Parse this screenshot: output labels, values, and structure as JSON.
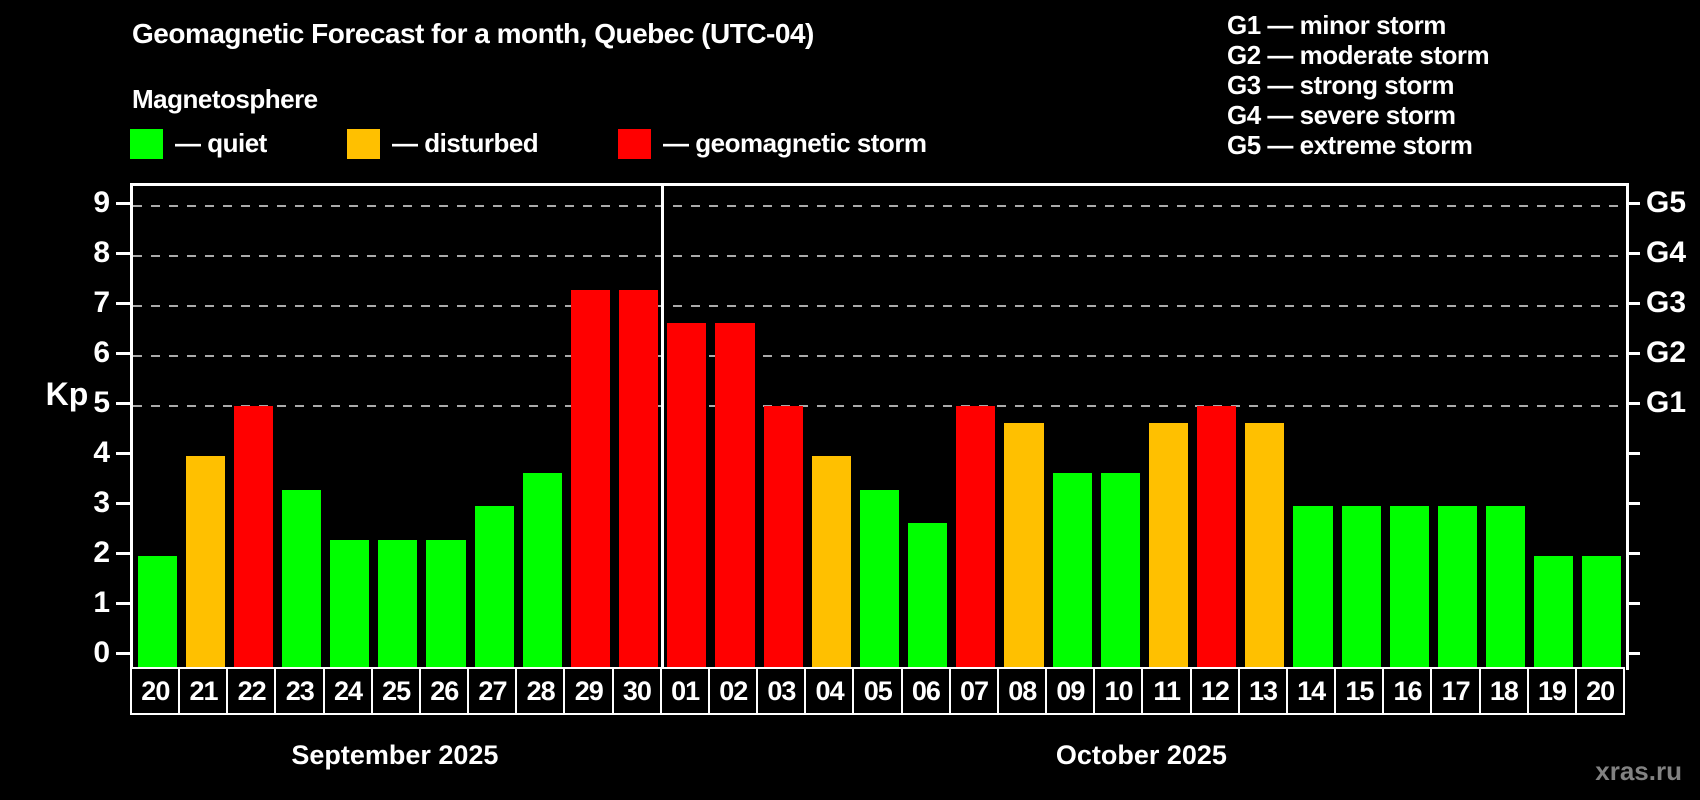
{
  "header": {
    "title": "Geomagnetic Forecast for a month, Quebec (UTC-04)",
    "subtitle": "Magnetosphere"
  },
  "legend": {
    "items": [
      {
        "key": "quiet",
        "label": "— quiet",
        "color": "#00ff00"
      },
      {
        "key": "disturbed",
        "label": "— disturbed",
        "color": "#ffc000"
      },
      {
        "key": "storm",
        "label": "— geomagnetic storm",
        "color": "#ff0000"
      }
    ]
  },
  "g_legend": {
    "items": [
      "G1 — minor storm",
      "G2 — moderate storm",
      "G3 — strong storm",
      "G4 — severe storm",
      "G5 — extreme storm"
    ]
  },
  "axes": {
    "y_label": "Kp",
    "y_ticks": [
      0,
      1,
      2,
      3,
      4,
      5,
      6,
      7,
      8,
      9
    ],
    "gridline_values": [
      5,
      6,
      7,
      8,
      9
    ],
    "right_labels": [
      {
        "text": "G5",
        "kp": 9
      },
      {
        "text": "G4",
        "kp": 8
      },
      {
        "text": "G3",
        "kp": 7
      },
      {
        "text": "G2",
        "kp": 6
      },
      {
        "text": "G1",
        "kp": 5
      }
    ]
  },
  "watermark": "xras.ru",
  "chart_data": {
    "type": "bar",
    "title": "Geomagnetic Forecast for a month, Quebec (UTC-04)",
    "xlabel": "",
    "ylabel": "Kp",
    "ylim": [
      0,
      9.4
    ],
    "grid": "dashed horizontal at Kp 5-9 (G1-G5)",
    "legend_position": "top-left",
    "categories": [
      "20",
      "21",
      "22",
      "23",
      "24",
      "25",
      "26",
      "27",
      "28",
      "29",
      "30",
      "01",
      "02",
      "03",
      "04",
      "05",
      "06",
      "07",
      "08",
      "09",
      "10",
      "11",
      "12",
      "13",
      "14",
      "15",
      "16",
      "17",
      "18",
      "19",
      "20"
    ],
    "values": [
      2.0,
      4.0,
      5.0,
      3.33,
      2.33,
      2.33,
      2.33,
      3.0,
      3.67,
      7.33,
      7.33,
      6.67,
      6.67,
      5.0,
      4.0,
      3.33,
      2.67,
      5.0,
      4.67,
      3.67,
      3.67,
      4.67,
      5.0,
      4.67,
      3.0,
      3.0,
      3.0,
      3.0,
      3.0,
      2.0,
      2.0
    ],
    "states": [
      "quiet",
      "disturbed",
      "storm",
      "quiet",
      "quiet",
      "quiet",
      "quiet",
      "quiet",
      "quiet",
      "storm",
      "storm",
      "storm",
      "storm",
      "storm",
      "disturbed",
      "quiet",
      "quiet",
      "storm",
      "disturbed",
      "quiet",
      "quiet",
      "disturbed",
      "storm",
      "disturbed",
      "quiet",
      "quiet",
      "quiet",
      "quiet",
      "quiet",
      "quiet",
      "quiet"
    ],
    "colors": {
      "quiet": "#00ff00",
      "disturbed": "#ffc000",
      "storm": "#ff0000"
    },
    "months": [
      {
        "label": "September 2025",
        "start": 0,
        "end": 10
      },
      {
        "label": "October 2025",
        "start": 11,
        "end": 30
      }
    ],
    "month_divider_after_index": 10
  }
}
